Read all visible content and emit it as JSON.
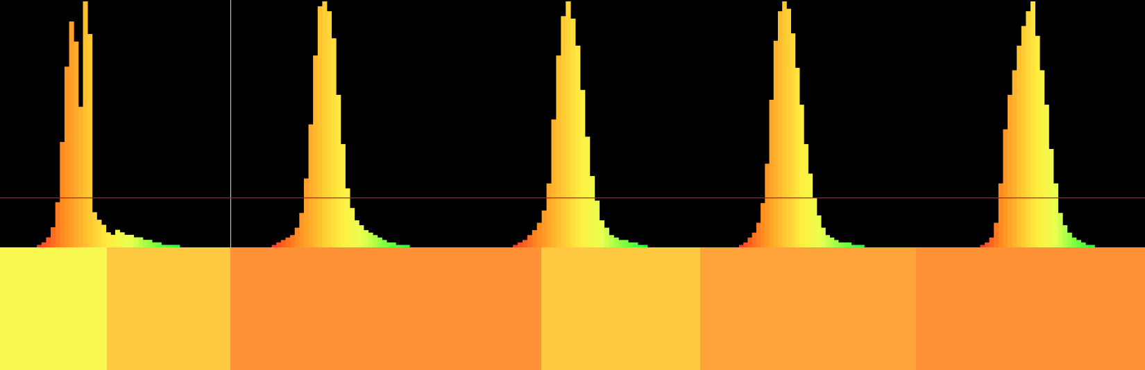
{
  "chart_data": {
    "type": "histogram-strip",
    "bins_per_panel": 50,
    "bin_range": [
      0,
      1
    ],
    "reference_line_fraction": 0.2,
    "reference_line_color": "#c81414",
    "divider_color": "#d8d8d8",
    "gradient_stops": [
      "#ff4020",
      "#ff8a20",
      "#ffc030",
      "#ffee40",
      "#e8ff50",
      "#80ff40",
      "#30ff40"
    ],
    "panels": [
      {
        "name": "panel-1",
        "bin_counts": [
          0,
          0,
          0,
          0,
          0,
          0,
          0,
          0,
          1,
          2,
          4,
          8,
          18,
          42,
          72,
          90,
          82,
          56,
          98,
          85,
          14,
          11,
          9,
          6,
          5,
          7,
          6,
          5,
          5,
          4,
          4,
          3,
          3,
          2,
          2,
          1,
          1,
          1,
          1,
          0,
          0,
          0,
          0,
          0,
          0,
          0,
          0,
          0,
          0,
          0
        ],
        "swatches": [
          {
            "share": 0.464,
            "color": "#f8f850"
          },
          {
            "share": 0.536,
            "color": "#fec940"
          }
        ]
      },
      {
        "name": "panel-2",
        "bin_counts": [
          0,
          0,
          0,
          0,
          0,
          0,
          0,
          0,
          0,
          1,
          2,
          3,
          4,
          5,
          8,
          14,
          28,
          50,
          78,
          98,
          100,
          96,
          85,
          62,
          42,
          24,
          16,
          11,
          9,
          7,
          6,
          5,
          4,
          3,
          2,
          2,
          1,
          1,
          1,
          0,
          0,
          0,
          0,
          0,
          0,
          0,
          0,
          0,
          0,
          0
        ],
        "swatches": [
          {
            "share": 1.0,
            "color": "#ff9236"
          }
        ]
      },
      {
        "name": "panel-3",
        "bin_counts": [
          0,
          0,
          0,
          0,
          0,
          0,
          0,
          0,
          0,
          0,
          0,
          1,
          2,
          3,
          5,
          7,
          10,
          15,
          26,
          52,
          78,
          94,
          100,
          93,
          82,
          64,
          45,
          29,
          19,
          11,
          8,
          5,
          4,
          3,
          3,
          2,
          2,
          1,
          1,
          0,
          0,
          0,
          0,
          0,
          0,
          0,
          0,
          0,
          0,
          0
        ],
        "swatches": [
          {
            "share": 0.339,
            "color": "#ff9236"
          },
          {
            "share": 0.661,
            "color": "#fec940"
          }
        ]
      },
      {
        "name": "panel-4",
        "bin_counts": [
          0,
          0,
          0,
          0,
          0,
          0,
          0,
          0,
          0,
          1,
          2,
          4,
          6,
          10,
          18,
          34,
          60,
          84,
          96,
          100,
          97,
          87,
          73,
          58,
          42,
          30,
          20,
          13,
          8,
          5,
          4,
          3,
          2,
          2,
          2,
          1,
          1,
          1,
          0,
          0,
          0,
          0,
          0,
          0,
          0,
          0,
          0,
          0,
          0,
          0
        ],
        "swatches": [
          {
            "share": 1.0,
            "color": "#fea23a"
          }
        ]
      },
      {
        "name": "panel-5",
        "bin_counts": [
          0,
          0,
          0,
          0,
          0,
          0,
          0,
          0,
          0,
          0,
          0,
          0,
          0,
          0,
          1,
          2,
          4,
          10,
          26,
          48,
          62,
          72,
          82,
          90,
          96,
          100,
          86,
          72,
          58,
          40,
          26,
          14,
          9,
          6,
          4,
          3,
          2,
          1,
          1,
          0,
          0,
          0,
          0,
          0,
          0,
          0,
          0,
          0,
          0,
          0
        ],
        "swatches": [
          {
            "share": 1.0,
            "color": "#ff9236"
          }
        ]
      }
    ]
  }
}
